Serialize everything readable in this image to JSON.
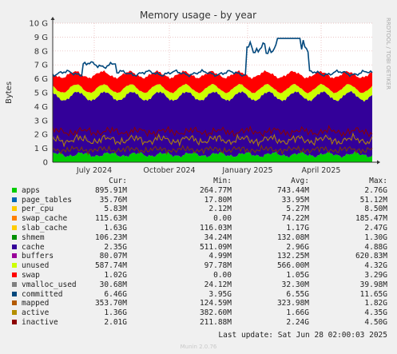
{
  "chart_data": {
    "type": "area",
    "title": "Memory usage - by year",
    "ylabel": "Bytes",
    "watermark": "RRDTOOL / TOBI OETIKER",
    "y_ticks": [
      "0",
      "1 G",
      "2 G",
      "3 G",
      "4 G",
      "5 G",
      "6 G",
      "7 G",
      "8 G",
      "9 G",
      "10 G"
    ],
    "ylim": [
      0,
      10
    ],
    "x_ticks": [
      "July 2024",
      "October 2024",
      "January 2025",
      "April 2025"
    ],
    "grid": true,
    "colors": {
      "apps": "#00cc00",
      "page_tables": "#0066b3",
      "per_cpu": "#ff8000",
      "swap_cache": "#ffcc00",
      "slab_cache": "#330099",
      "cache": "#330099",
      "buffers": "#990099",
      "unused": "#ccff00",
      "swap": "#ff0000",
      "committed": "#00487d",
      "mapped": "#7d3d00",
      "active": "#b38600",
      "inactive": "#8c0000"
    }
  },
  "legend": {
    "headers": {
      "cur": "Cur:",
      "min": "Min:",
      "avg": "Avg:",
      "max": "Max:"
    },
    "rows": [
      {
        "name": "apps",
        "color": "#00cc00",
        "cur": "895.91M",
        "min": "264.77M",
        "avg": "743.44M",
        "max": "2.76G"
      },
      {
        "name": "page_tables",
        "color": "#0066b3",
        "cur": "35.76M",
        "min": "17.80M",
        "avg": "33.95M",
        "max": "51.12M"
      },
      {
        "name": "per_cpu",
        "color": "#ffcc00",
        "cur": "5.83M",
        "min": "2.12M",
        "avg": "5.27M",
        "max": "8.50M"
      },
      {
        "name": "swap_cache",
        "color": "#ff8000",
        "cur": "115.63M",
        "min": "0.00",
        "avg": "74.22M",
        "max": "185.47M"
      },
      {
        "name": "slab_cache",
        "color": "#ffcc00",
        "cur": "1.63G",
        "min": "116.03M",
        "avg": "1.17G",
        "max": "2.47G"
      },
      {
        "name": "shmem",
        "color": "#008f00",
        "cur": "106.23M",
        "min": "34.24M",
        "avg": "132.08M",
        "max": "1.30G"
      },
      {
        "name": "cache",
        "color": "#330099",
        "cur": "2.35G",
        "min": "511.09M",
        "avg": "2.96G",
        "max": "4.88G"
      },
      {
        "name": "buffers",
        "color": "#990099",
        "cur": "80.07M",
        "min": "4.99M",
        "avg": "132.25M",
        "max": "620.83M"
      },
      {
        "name": "unused",
        "color": "#ccff00",
        "cur": "587.74M",
        "min": "97.78M",
        "avg": "566.00M",
        "max": "4.32G"
      },
      {
        "name": "swap",
        "color": "#ff0000",
        "cur": "1.02G",
        "min": "0.00",
        "avg": "1.05G",
        "max": "3.29G"
      },
      {
        "name": "vmalloc_used",
        "color": "#808080",
        "cur": "30.68M",
        "min": "24.12M",
        "avg": "32.30M",
        "max": "39.98M"
      },
      {
        "name": "committed",
        "color": "#00487d",
        "cur": "6.46G",
        "min": "3.95G",
        "avg": "6.55G",
        "max": "11.65G"
      },
      {
        "name": "mapped",
        "color": "#b35a00",
        "cur": "353.70M",
        "min": "124.59M",
        "avg": "323.98M",
        "max": "1.82G"
      },
      {
        "name": "active",
        "color": "#b38f00",
        "cur": "1.36G",
        "min": "382.60M",
        "avg": "1.66G",
        "max": "4.35G"
      },
      {
        "name": "inactive",
        "color": "#8c0000",
        "cur": "2.01G",
        "min": "211.88M",
        "avg": "2.24G",
        "max": "4.50G"
      }
    ]
  },
  "footer": {
    "last_update": "Last update: Sat Jun 28 02:00:03 2025",
    "munin": "Munin 2.0.76"
  }
}
